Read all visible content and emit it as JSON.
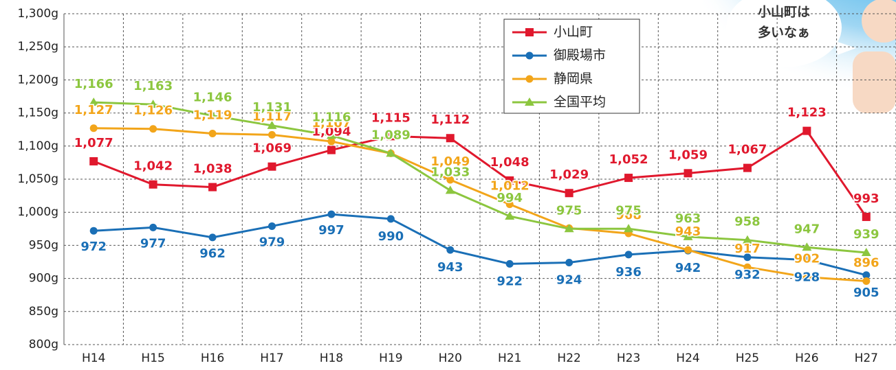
{
  "chart_data": {
    "type": "line",
    "categories": [
      "H14",
      "H15",
      "H16",
      "H17",
      "H18",
      "H19",
      "H20",
      "H21",
      "H22",
      "H23",
      "H24",
      "H25",
      "H26",
      "H27"
    ],
    "series": [
      {
        "name": "小山町",
        "color": "#e0182d",
        "marker": "square",
        "values": [
          1077,
          1042,
          1038,
          1069,
          1094,
          1115,
          1112,
          1048,
          1029,
          1052,
          1059,
          1067,
          1123,
          993
        ],
        "value_labels": [
          "1,077",
          "1,042",
          "1,038",
          "1,069",
          "1,094",
          "1,115",
          "1,112",
          "1,048",
          "1,029",
          "1,052",
          "1,059",
          "1,067",
          "1,123",
          "993"
        ]
      },
      {
        "name": "御殿場市",
        "color": "#1a6fb6",
        "marker": "circle",
        "values": [
          972,
          977,
          962,
          979,
          997,
          990,
          943,
          922,
          924,
          936,
          942,
          932,
          928,
          905
        ]
      },
      {
        "name": "静岡県",
        "color": "#f2a51a",
        "marker": "circle",
        "values": [
          1127,
          1126,
          1119,
          1117,
          1107,
          1089,
          1049,
          1012,
          976,
          968,
          943,
          917,
          902,
          896
        ],
        "value_labels": [
          "1,127",
          "1,126",
          "1,119",
          "1,117",
          "1,107",
          "1,089",
          "1,049",
          "1,012",
          "976",
          "968",
          "943",
          "917",
          "902",
          "896"
        ]
      },
      {
        "name": "全国平均",
        "color": "#8cc63f",
        "marker": "triangle",
        "values": [
          1166,
          1163,
          1146,
          1131,
          1116,
          1089,
          1033,
          994,
          975,
          975,
          963,
          958,
          947,
          939
        ],
        "value_labels": [
          "1,166",
          "1,163",
          "1,146",
          "1,131",
          "1,116",
          "1,089",
          "1,033",
          "994",
          "975",
          "975",
          "963",
          "958",
          "947",
          "939"
        ]
      }
    ],
    "ylim": [
      800,
      1300
    ],
    "yticks": [
      {
        "value": 800,
        "label": "800g"
      },
      {
        "value": 850,
        "label": "850g"
      },
      {
        "value": 900,
        "label": "900g"
      },
      {
        "value": 950,
        "label": "950g"
      },
      {
        "value": 1000,
        "label": "1,000g"
      },
      {
        "value": 1050,
        "label": "1,050g"
      },
      {
        "value": 1100,
        "label": "1,100g"
      },
      {
        "value": 1150,
        "label": "1,150g"
      },
      {
        "value": 1200,
        "label": "1,200g"
      },
      {
        "value": 1250,
        "label": "1,250g"
      },
      {
        "value": 1300,
        "label": "1,300g"
      }
    ],
    "grid": true,
    "annotation": [
      "小山町は",
      "多いなぁ"
    ]
  }
}
